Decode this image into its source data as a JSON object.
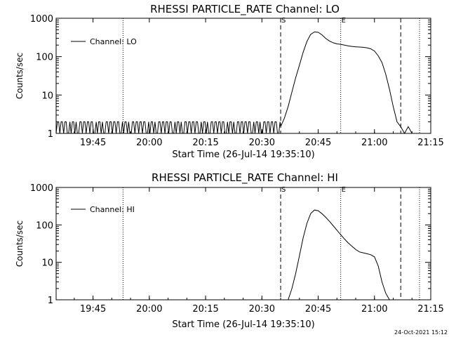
{
  "footer": {
    "datestamp": "24-Oct-2021 15:12"
  },
  "chart_data": [
    {
      "type": "line",
      "title": "RHESSI PARTICLE_RATE Channel: LO",
      "xlabel": "Start Time (26-Jul-14 19:35:10)",
      "ylabel": "Counts/sec",
      "y_scale": "log",
      "ylim": [
        1,
        1000
      ],
      "y_ticks": [
        "1",
        "10",
        "100",
        "1000"
      ],
      "xlim": [
        "19:35:10",
        "21:15:00"
      ],
      "x_ticks": [
        "19:45",
        "20:00",
        "20:15",
        "20:30",
        "20:45",
        "21:00",
        "21:15"
      ],
      "legend": {
        "label": "Channel: LO",
        "position": "top-left"
      },
      "markers": [
        {
          "time": "19:53",
          "style": "dotted",
          "label": ""
        },
        {
          "time": "20:35",
          "style": "dashed",
          "label": "S"
        },
        {
          "time": "20:51",
          "style": "dotted",
          "label": "E"
        },
        {
          "time": "21:07",
          "style": "dashed",
          "label": ""
        },
        {
          "time": "21:12",
          "style": "dotted",
          "label": ""
        }
      ],
      "series": [
        {
          "name": "Channel: LO",
          "noise_floor": {
            "from": "19:35:10",
            "to": "20:35",
            "low": 1,
            "high": 2
          },
          "times": [
            "20:35",
            "20:36",
            "20:37",
            "20:38",
            "20:39",
            "20:40",
            "20:41",
            "20:42",
            "20:43",
            "20:44",
            "20:45",
            "20:46",
            "20:47",
            "20:48",
            "20:49",
            "20:50",
            "20:51",
            "20:52",
            "20:53",
            "20:54",
            "20:55",
            "20:56",
            "20:57",
            "20:58",
            "20:59",
            "21:00",
            "21:01",
            "21:02",
            "21:03",
            "21:04",
            "21:05",
            "21:06",
            "21:07",
            "21:08",
            "21:09",
            "21:10"
          ],
          "values": [
            1.5,
            2.5,
            5,
            12,
            28,
            60,
            130,
            250,
            380,
            440,
            430,
            370,
            300,
            255,
            230,
            215,
            210,
            200,
            190,
            185,
            180,
            178,
            175,
            170,
            160,
            140,
            105,
            70,
            35,
            14,
            5,
            2,
            1.5,
            1,
            1.5,
            1
          ]
        }
      ]
    },
    {
      "type": "line",
      "title": "RHESSI PARTICLE_RATE Channel: HI",
      "xlabel": "Start Time (26-Jul-14 19:35:10)",
      "ylabel": "Counts/sec",
      "y_scale": "log",
      "ylim": [
        1,
        1000
      ],
      "y_ticks": [
        "1",
        "10",
        "100",
        "1000"
      ],
      "xlim": [
        "19:35:10",
        "21:15:00"
      ],
      "x_ticks": [
        "19:45",
        "20:00",
        "20:15",
        "20:30",
        "20:45",
        "21:00",
        "21:15"
      ],
      "legend": {
        "label": "Channel: HI",
        "position": "top-left"
      },
      "markers": [
        {
          "time": "19:53",
          "style": "dotted",
          "label": ""
        },
        {
          "time": "20:35",
          "style": "dashed",
          "label": "S"
        },
        {
          "time": "20:51",
          "style": "dotted",
          "label": "E"
        },
        {
          "time": "21:07",
          "style": "dashed",
          "label": ""
        },
        {
          "time": "21:12",
          "style": "dotted",
          "label": ""
        }
      ],
      "series": [
        {
          "name": "Channel: HI",
          "times": [
            "20:37",
            "20:38",
            "20:39",
            "20:40",
            "20:41",
            "20:42",
            "20:43",
            "20:44",
            "20:45",
            "20:46",
            "20:47",
            "20:48",
            "20:49",
            "20:50",
            "20:51",
            "20:52",
            "20:53",
            "20:54",
            "20:55",
            "20:56",
            "20:57",
            "20:58",
            "20:59",
            "21:00",
            "21:01",
            "21:02",
            "21:03",
            "21:04"
          ],
          "values": [
            1,
            2,
            5,
            15,
            45,
            110,
            200,
            250,
            240,
            200,
            160,
            125,
            95,
            72,
            55,
            42,
            33,
            27,
            22,
            19,
            18,
            17,
            16,
            14,
            8,
            3,
            1.5,
            1
          ]
        }
      ]
    }
  ]
}
